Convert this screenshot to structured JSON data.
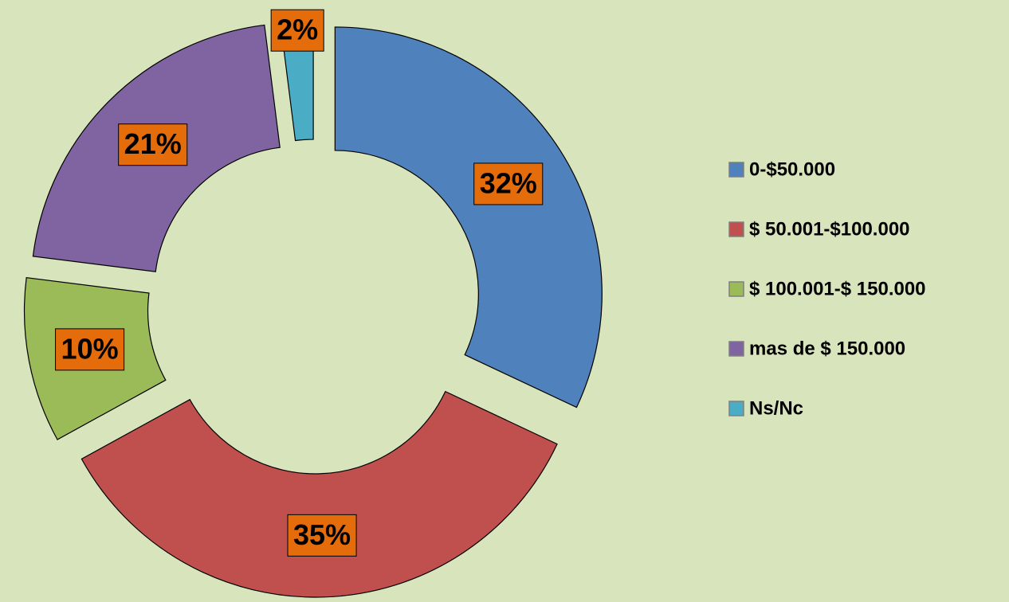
{
  "chart_data": {
    "type": "donut",
    "categories": [
      "0-$50.000",
      "$ 50.001-$100.000",
      "$ 100.001-$ 150.000",
      "mas de $ 150.000",
      "Ns/Nc"
    ],
    "values": [
      32,
      35,
      10,
      21,
      2
    ],
    "value_labels": [
      "32%",
      "35%",
      "10%",
      "21%",
      "2%"
    ],
    "colors": [
      "#4f81bd",
      "#c0504d",
      "#9bbb59",
      "#8064a2",
      "#4bacc6"
    ],
    "legend": "right"
  }
}
